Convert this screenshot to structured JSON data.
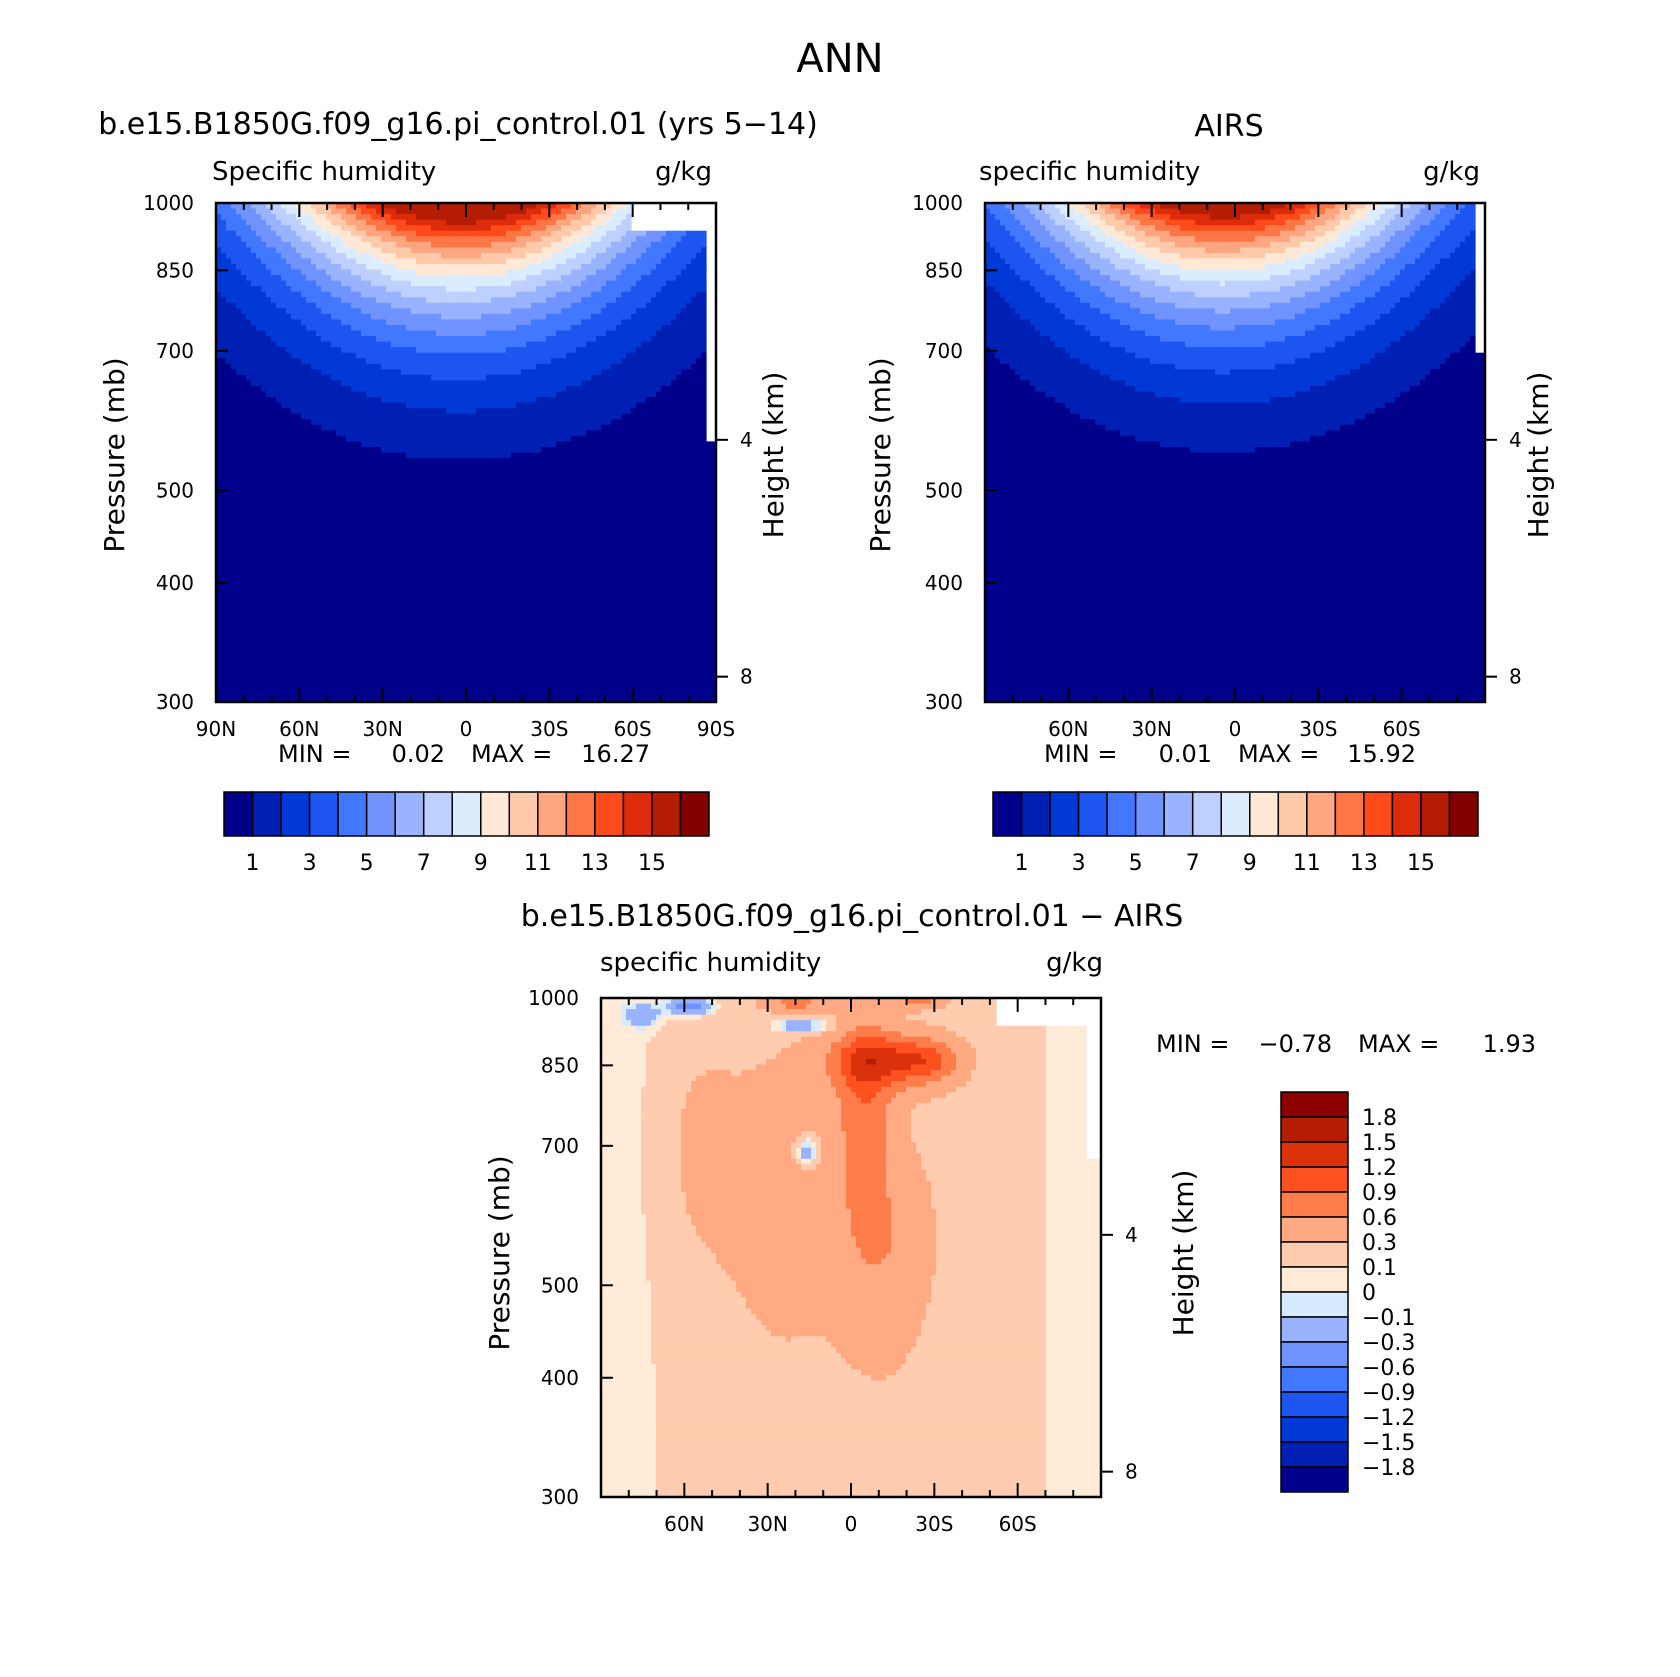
{
  "page_title": "ANN",
  "chart_data": [
    {
      "type": "heatmap",
      "subtype": "filled-contour latitude-pressure cross section",
      "title": "b.e15.B1850G.f09_g16.pi_control.01 (yrs 5−14)",
      "subtitle_left": "Specific humidity",
      "subtitle_right": "g/kg",
      "xlabel": "",
      "ylabel": "Pressure (mb)",
      "ylabel_right": "Height (km)",
      "xticks": [
        "90N",
        "60N",
        "30N",
        "0",
        "30S",
        "60S",
        "90S"
      ],
      "xlim": [
        90,
        -90
      ],
      "yticks": [
        "300",
        "400",
        "500",
        "700",
        "850",
        "1000"
      ],
      "ylim": [
        1000,
        300
      ],
      "right_ticks": [
        "8",
        "4"
      ],
      "stats": {
        "min_label": "MIN =",
        "min": "0.02",
        "max_label": "MAX =",
        "max": "16.27"
      },
      "legend": "bottom",
      "levels": [
        1,
        2,
        3,
        4,
        5,
        6,
        7,
        8,
        9,
        10,
        11,
        12,
        13,
        14,
        15
      ],
      "colorbar_labels": [
        "1",
        "3",
        "5",
        "7",
        "9",
        "11",
        "13",
        "15"
      ],
      "shape": {
        "center_lat": 2,
        "width_lat": 70,
        "peak": 17.0,
        "pmin": 340
      }
    },
    {
      "type": "heatmap",
      "subtype": "filled-contour latitude-pressure cross section",
      "title": "AIRS",
      "subtitle_left": "specific humidity",
      "subtitle_right": "g/kg",
      "xlabel": "",
      "ylabel": "Pressure (mb)",
      "ylabel_right": "Height (km)",
      "xticks": [
        "60N",
        "30N",
        "0",
        "30S",
        "60S"
      ],
      "xlim": [
        90,
        -90
      ],
      "yticks": [
        "300",
        "400",
        "500",
        "700",
        "850",
        "1000"
      ],
      "ylim": [
        1000,
        300
      ],
      "right_ticks": [
        "8",
        "4"
      ],
      "stats": {
        "min_label": "MIN =",
        "min": "0.01",
        "max_label": "MAX =",
        "max": "15.92"
      },
      "legend": "bottom",
      "levels": [
        1,
        2,
        3,
        4,
        5,
        6,
        7,
        8,
        9,
        10,
        11,
        12,
        13,
        14,
        15
      ],
      "colorbar_labels": [
        "1",
        "3",
        "5",
        "7",
        "9",
        "11",
        "13",
        "15"
      ],
      "shape": {
        "center_lat": 4,
        "width_lat": 68,
        "peak": 16.2,
        "pmin": 350
      }
    },
    {
      "type": "heatmap",
      "subtype": "filled-contour difference cross section",
      "title": "b.e15.B1850G.f09_g16.pi_control.01 − AIRS",
      "subtitle_left": "specific humidity",
      "subtitle_right": "g/kg",
      "xlabel": "",
      "ylabel": "Pressure (mb)",
      "ylabel_right": "Height (km)",
      "xticks": [
        "60N",
        "30N",
        "0",
        "30S",
        "60S"
      ],
      "xlim": [
        90,
        -90
      ],
      "yticks": [
        "300",
        "400",
        "500",
        "700",
        "850",
        "1000"
      ],
      "ylim": [
        1000,
        300
      ],
      "right_ticks": [
        "8",
        "4"
      ],
      "stats": {
        "min_label": "MIN =",
        "min": "−0.78",
        "max_label": "MAX =",
        "max": "1.93"
      },
      "legend": "right",
      "levels": [
        -1.8,
        -1.5,
        -1.2,
        -0.9,
        -0.6,
        -0.3,
        -0.1,
        0,
        0.1,
        0.3,
        0.6,
        0.9,
        1.2,
        1.5,
        1.8
      ],
      "colorbar_labels": [
        "1.8",
        "1.5",
        "1.2",
        "0.9",
        "0.6",
        "0.3",
        "0.1",
        "0",
        "−0.1",
        "−0.3",
        "−0.6",
        "−0.9",
        "−1.2",
        "−1.5",
        "−1.8"
      ]
    }
  ],
  "colors": {
    "sequential": [
      "#00008b",
      "#0020b4",
      "#0039d6",
      "#1c55f0",
      "#4277ff",
      "#7093ff",
      "#9ab3ff",
      "#bdd0ff",
      "#dcecff",
      "#ffe8d6",
      "#ffc9aa",
      "#ffa57f",
      "#ff7646",
      "#ff4a1c",
      "#dc2c0c",
      "#b41c04",
      "#820000"
    ],
    "diverging": [
      "#00008b",
      "#0020b4",
      "#0039d6",
      "#1c55f0",
      "#4277ff",
      "#7093ff",
      "#9ab3ff",
      "#d6ebff",
      "#ffebd8",
      "#ffccaf",
      "#ffaa82",
      "#ff7d4b",
      "#ff5020",
      "#dc320c",
      "#b41c04",
      "#8c0000"
    ]
  }
}
